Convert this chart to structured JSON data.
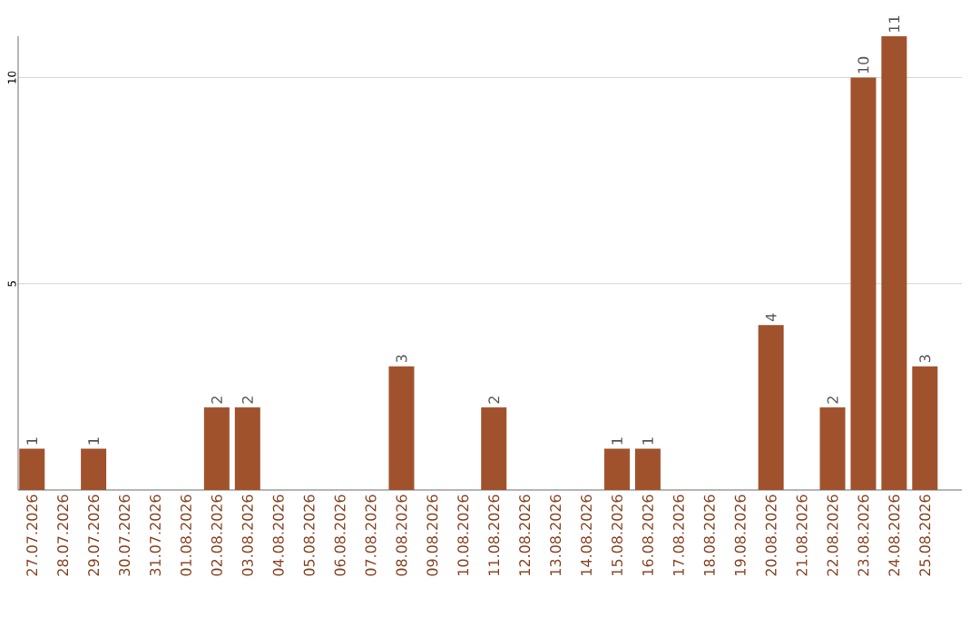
{
  "chart_data": {
    "type": "bar",
    "categories": [
      "27.07.2026",
      "28.07.2026",
      "29.07.2026",
      "30.07.2026",
      "31.07.2026",
      "01.08.2026",
      "02.08.2026",
      "03.08.2026",
      "04.08.2026",
      "05.08.2026",
      "06.08.2026",
      "07.08.2026",
      "08.08.2026",
      "09.08.2026",
      "10.08.2026",
      "11.08.2026",
      "12.08.2026",
      "13.08.2026",
      "14.08.2026",
      "15.08.2026",
      "16.08.2026",
      "17.08.2026",
      "18.08.2026",
      "19.08.2026",
      "20.08.2026",
      "21.08.2026",
      "22.08.2026",
      "23.08.2026",
      "24.08.2026",
      "25.08.2026"
    ],
    "values": [
      1,
      0,
      1,
      0,
      0,
      0,
      2,
      2,
      0,
      0,
      0,
      0,
      3,
      0,
      0,
      2,
      0,
      0,
      0,
      1,
      1,
      0,
      0,
      0,
      4,
      0,
      2,
      10,
      11,
      3
    ],
    "value_labels": [
      "1",
      null,
      "1",
      null,
      null,
      null,
      "2",
      "2",
      null,
      null,
      null,
      null,
      "3",
      null,
      null,
      "2",
      null,
      null,
      null,
      "1",
      "1",
      null,
      null,
      null,
      "4",
      null,
      "2",
      "10",
      "11",
      "3"
    ],
    "color": "#a0522d",
    "ylim": [
      0,
      11
    ],
    "yticks": [
      5,
      10
    ],
    "grid": "y"
  }
}
